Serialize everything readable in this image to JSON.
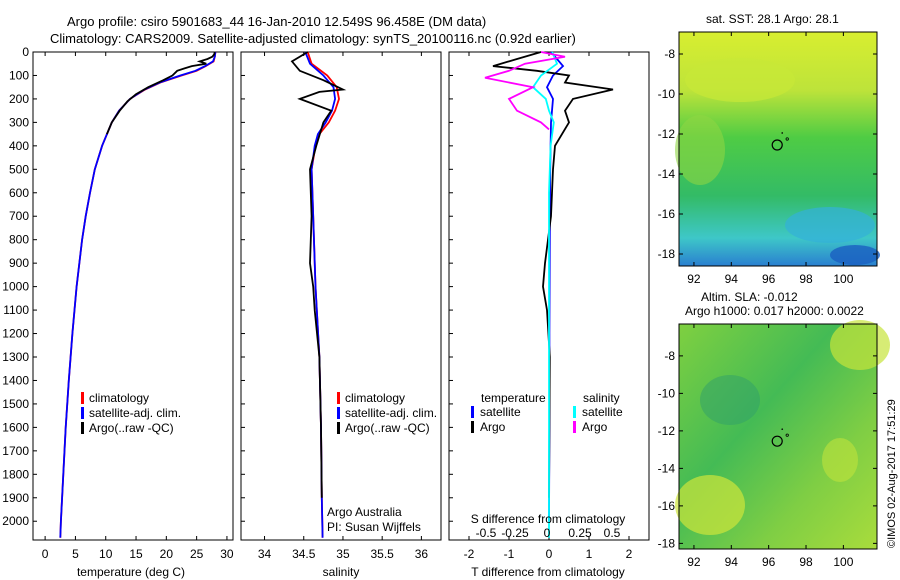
{
  "title_line1": "Argo profile: csiro 5901683_44 16-Jan-2010 12.549S 96.458E (DM data)",
  "title_line2": "Climatology: CARS2009. Satellite-adjusted climatology: synTS_20100116.nc (0.92d earlier)",
  "watermark": "©IMOS 02-Aug-2017 17:51:29",
  "colors": {
    "climatology": "#ff0000",
    "satellite": "#0000ff",
    "argo": "#000000",
    "s_satellite": "#00ffff",
    "s_argo": "#ff00ff"
  },
  "chart_data": [
    {
      "type": "line",
      "panel": "temperature",
      "xlabel": "temperature (deg C)",
      "xlim": [
        -2,
        31
      ],
      "ylim": [
        2080,
        0
      ],
      "xticks": [
        0,
        5,
        10,
        15,
        20,
        25,
        30
      ],
      "yticks": [
        0,
        100,
        200,
        300,
        400,
        500,
        600,
        700,
        800,
        900,
        1000,
        1100,
        1200,
        1300,
        1400,
        1500,
        1600,
        1700,
        1800,
        1900,
        2000
      ],
      "legend": [
        "climatology",
        "satellite-adj. clim.",
        "Argo(..raw -QC)"
      ],
      "series": [
        {
          "name": "climatology",
          "color": "#ff0000",
          "depth": [
            0,
            20,
            40,
            60,
            80,
            100,
            130,
            160,
            200,
            250,
            300,
            400,
            500,
            600,
            700,
            800,
            1000,
            1200,
            1400,
            1600,
            1800,
            2000,
            2070
          ],
          "values": [
            28.1,
            28.0,
            27.8,
            26.5,
            25.0,
            22.5,
            19.0,
            16.5,
            14.0,
            12.2,
            11.0,
            9.4,
            8.2,
            7.4,
            6.7,
            6.1,
            5.2,
            4.5,
            3.9,
            3.4,
            3.0,
            2.6,
            2.5
          ]
        },
        {
          "name": "satellite-adj. clim.",
          "color": "#0000ff",
          "depth": [
            0,
            20,
            40,
            60,
            80,
            100,
            130,
            160,
            200,
            250,
            300,
            400,
            500,
            600,
            700,
            800,
            1000,
            1200,
            1400,
            1600,
            1800,
            2000,
            2070
          ],
          "values": [
            28.1,
            28.0,
            27.7,
            26.4,
            24.8,
            22.3,
            18.9,
            16.4,
            14.0,
            12.2,
            11.0,
            9.4,
            8.2,
            7.4,
            6.7,
            6.1,
            5.2,
            4.5,
            3.9,
            3.4,
            3.0,
            2.6,
            2.5
          ]
        },
        {
          "name": "Argo(..raw -QC)",
          "color": "#000000",
          "depth": [
            0,
            10,
            20,
            30,
            40,
            50,
            60,
            70,
            80,
            100,
            120,
            150,
            180,
            210,
            250,
            300,
            350
          ],
          "values": [
            28.0,
            27.9,
            27.6,
            26.8,
            25.5,
            26.6,
            24.2,
            23.0,
            21.8,
            21.0,
            19.5,
            17.0,
            15.0,
            13.6,
            12.3,
            11.0,
            10.2
          ]
        }
      ]
    },
    {
      "type": "line",
      "panel": "salinity",
      "xlabel": "salinity",
      "xlim": [
        33.7,
        36.25
      ],
      "ylim": [
        2080,
        0
      ],
      "xticks": [
        34,
        34.5,
        35,
        35.5,
        36
      ],
      "legend": [
        "climatology",
        "satellite-adj. clim.",
        "Argo(..raw -QC)"
      ],
      "annotation": [
        "Argo Australia",
        "PI: Susan Wijffels"
      ],
      "series": [
        {
          "name": "climatology",
          "color": "#ff0000",
          "depth": [
            0,
            50,
            100,
            150,
            200,
            250,
            300,
            350,
            400,
            500,
            700,
            1000,
            1300,
            1600,
            1900,
            2070
          ],
          "values": [
            34.55,
            34.6,
            34.8,
            34.92,
            34.95,
            34.9,
            34.82,
            34.7,
            34.65,
            34.6,
            34.62,
            34.65,
            34.7,
            34.72,
            34.73,
            34.74
          ]
        },
        {
          "name": "satellite-adj. clim.",
          "color": "#0000ff",
          "depth": [
            0,
            50,
            100,
            150,
            200,
            250,
            300,
            350,
            400,
            500,
            700,
            1000,
            1300,
            1600,
            1900,
            2070
          ],
          "values": [
            34.52,
            34.58,
            34.75,
            34.88,
            34.9,
            34.86,
            34.78,
            34.68,
            34.64,
            34.6,
            34.62,
            34.65,
            34.7,
            34.72,
            34.73,
            34.74
          ]
        },
        {
          "name": "Argo(..raw -QC)",
          "color": "#000000",
          "depth": [
            0,
            40,
            80,
            120,
            160,
            170,
            200,
            250,
            300,
            400,
            500,
            700,
            900,
            1000,
            1100,
            1300,
            1600,
            1900
          ],
          "values": [
            34.55,
            34.35,
            34.45,
            34.75,
            35.0,
            34.7,
            34.45,
            34.85,
            34.75,
            34.66,
            34.58,
            34.6,
            34.58,
            34.62,
            34.64,
            34.7,
            34.72,
            34.73
          ]
        }
      ]
    },
    {
      "type": "line",
      "panel": "difference",
      "xlabel_bottom": "T difference from climatology",
      "xlabel_top": "S difference from climatology",
      "xlim": [
        -2.5,
        2.5
      ],
      "ylim": [
        2080,
        0
      ],
      "xticks": [
        -2,
        -1,
        0,
        1,
        2
      ],
      "xticks_top": [
        "-0.5",
        "-0.25",
        "0",
        "0.25",
        "0.5"
      ],
      "legend_temperature": {
        "title": "temperature",
        "items": [
          "satellite",
          "Argo"
        ]
      },
      "legend_salinity": {
        "title": "salinity",
        "items": [
          "satellite",
          "Argo"
        ]
      },
      "series": [
        {
          "name": "T satellite",
          "color": "#0000ff",
          "depth": [
            0,
            30,
            60,
            100,
            150,
            200,
            300,
            500,
            800,
            1200,
            1600,
            2000
          ],
          "values": [
            0.05,
            0.2,
            0.35,
            0.1,
            -0.05,
            0.1,
            0.05,
            0.03,
            0.02,
            0.01,
            0.01,
            0.0
          ]
        },
        {
          "name": "T Argo",
          "color": "#000000",
          "depth": [
            0,
            30,
            60,
            80,
            100,
            130,
            160,
            200,
            250,
            300,
            400,
            500,
            700,
            900,
            1000,
            1100,
            1300,
            1600,
            1900
          ],
          "values": [
            -0.2,
            -0.8,
            -1.4,
            -0.3,
            0.5,
            0.4,
            1.6,
            0.6,
            0.4,
            0.5,
            0.15,
            0.1,
            0.05,
            -0.1,
            -0.15,
            -0.05,
            0.02,
            0.01,
            0.0
          ]
        },
        {
          "name": "S satellite",
          "color": "#00ffff",
          "depth": [
            0,
            50,
            100,
            150,
            200,
            250,
            300,
            400,
            600,
            900,
            1300,
            1700,
            2070
          ],
          "values": [
            0.02,
            0.05,
            -0.05,
            -0.1,
            -0.02,
            0.0,
            0.03,
            0.01,
            0.0,
            0.0,
            0.0,
            0.0,
            0.0
          ]
        },
        {
          "name": "S Argo",
          "color": "#ff00ff",
          "depth": [
            0,
            20,
            50,
            80,
            110,
            150,
            200,
            250,
            300,
            330
          ],
          "values": [
            -0.05,
            0.1,
            -0.15,
            -0.25,
            -0.4,
            -0.1,
            -0.25,
            -0.2,
            -0.05,
            0.0
          ]
        }
      ]
    },
    {
      "type": "heatmap",
      "panel": "sst_map",
      "title": "sat. SST: 28.1  Argo: 28.1",
      "xticks": [
        92,
        94,
        96,
        98,
        100
      ],
      "yticks": [
        -8,
        -10,
        -12,
        -14,
        -16,
        -18
      ],
      "xlim": [
        91.2,
        101.8
      ],
      "ylim": [
        -18.6,
        -6.9
      ],
      "marker": {
        "lon": 96.458,
        "lat": -12.549
      }
    },
    {
      "type": "heatmap",
      "panel": "sla_map",
      "title": "Altim. SLA: -0.012",
      "subtitle": "Argo h1000: 0.017 h2000: 0.0022",
      "xticks": [
        92,
        94,
        96,
        98,
        100
      ],
      "yticks": [
        -8,
        -10,
        -12,
        -14,
        -16,
        -18
      ],
      "xlim": [
        91.2,
        101.8
      ],
      "ylim": [
        -18.3,
        -6.3
      ],
      "marker": {
        "lon": 96.458,
        "lat": -12.549
      }
    }
  ]
}
